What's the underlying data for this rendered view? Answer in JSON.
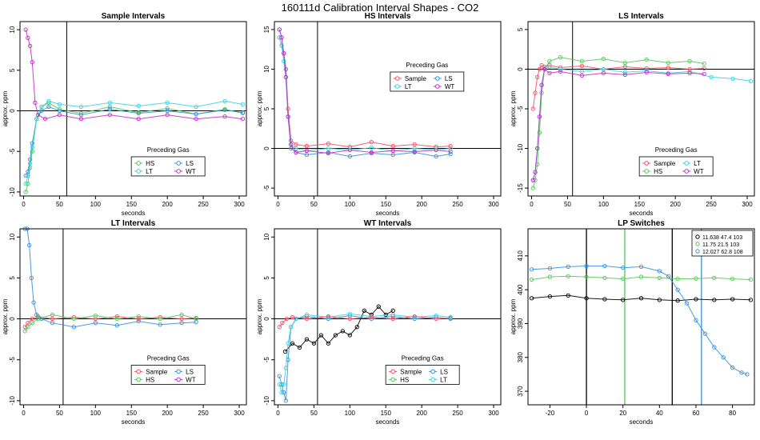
{
  "figure_title": "160111d   Calibration Interval Shapes - CO2",
  "colors": {
    "Sample": "#e8536a",
    "HS": "#59c65a",
    "LS": "#3a8fdc",
    "LT": "#3fd1dc",
    "WT": "#c030c8",
    "black": "#000000"
  },
  "chart_data": [
    {
      "type": "scatter",
      "title": "Sample Intervals",
      "xlabel": "seconds",
      "ylabel": "approx. ppm",
      "xlim": [
        -5,
        310
      ],
      "ylim": [
        -10.5,
        11
      ],
      "xticks": [
        0,
        50,
        100,
        150,
        200,
        250,
        300
      ],
      "yticks": [
        -10,
        -5,
        0,
        5,
        10
      ],
      "hline": 0,
      "vline": 60,
      "legend_title": "Preceding Gas",
      "legend": [
        "HS",
        "LS",
        "LT",
        "WT"
      ],
      "series": [
        {
          "name": "HS",
          "x": [
            3,
            6,
            9,
            12,
            18,
            25,
            35,
            50,
            80,
            120,
            160,
            200,
            240,
            280,
            305
          ],
          "y": [
            -10,
            -9,
            -7,
            -5,
            -1,
            0.5,
            1,
            0.2,
            -0.3,
            0.5,
            -0.2,
            0.3,
            -0.4,
            0.2,
            -0.3
          ]
        },
        {
          "name": "LS",
          "x": [
            3,
            6,
            9,
            12,
            18,
            25,
            35,
            50,
            80,
            120,
            160,
            200,
            240,
            280,
            305
          ],
          "y": [
            -8,
            -7.5,
            -6,
            -4,
            -1,
            0,
            0.5,
            0,
            -0.5,
            0.2,
            -0.3,
            0,
            -0.4,
            0.1,
            -0.2
          ]
        },
        {
          "name": "LT",
          "x": [
            3,
            6,
            9,
            12,
            18,
            25,
            35,
            50,
            80,
            120,
            160,
            200,
            240,
            280,
            305
          ],
          "y": [
            -9,
            -8,
            -6.5,
            -4.5,
            -1,
            0.5,
            1.2,
            0.8,
            0.5,
            1,
            0.6,
            1,
            0.5,
            1.2,
            0.8
          ]
        },
        {
          "name": "WT",
          "x": [
            3,
            6,
            9,
            12,
            16,
            20,
            30,
            50,
            80,
            120,
            160,
            200,
            240,
            280,
            305
          ],
          "y": [
            10,
            9,
            8,
            6,
            1,
            -0.5,
            -1,
            -0.5,
            -1,
            -0.5,
            -1,
            -0.5,
            -1,
            -0.7,
            -1
          ]
        }
      ]
    },
    {
      "type": "scatter",
      "title": "HS Intervals",
      "xlabel": "seconds",
      "ylabel": "approx. ppm",
      "xlim": [
        -5,
        310
      ],
      "ylim": [
        -6,
        16
      ],
      "xticks": [
        0,
        50,
        100,
        150,
        200,
        250,
        300
      ],
      "yticks": [
        -5,
        0,
        5,
        10,
        15
      ],
      "hline": 0,
      "vline": 55,
      "legend_title": "Preceding Gas",
      "legend": [
        "Sample",
        "LS",
        "LT",
        "WT"
      ],
      "series": [
        {
          "name": "Sample",
          "x": [
            2,
            5,
            8,
            11,
            14,
            18,
            25,
            40,
            70,
            100,
            130,
            160,
            190,
            220,
            240
          ],
          "y": [
            14,
            13,
            12,
            10,
            5,
            1,
            0.5,
            0.3,
            0.6,
            0.2,
            0.8,
            0.3,
            0.5,
            0.2,
            0.3
          ]
        },
        {
          "name": "LS",
          "x": [
            2,
            5,
            8,
            11,
            14,
            18,
            25,
            40,
            70,
            100,
            130,
            160,
            190,
            220,
            240
          ],
          "y": [
            15,
            14,
            12,
            10,
            4,
            0,
            -0.5,
            -0.8,
            -0.5,
            -1,
            -0.6,
            -0.8,
            -0.5,
            -1,
            -0.7
          ]
        },
        {
          "name": "LT",
          "x": [
            2,
            5,
            8,
            11,
            14,
            18,
            25,
            40,
            70,
            100,
            130,
            160,
            190,
            220,
            240
          ],
          "y": [
            14,
            13,
            11,
            9,
            4,
            0.5,
            0,
            -0.3,
            0,
            -0.2,
            0.1,
            -0.3,
            0,
            -0.2,
            0
          ]
        },
        {
          "name": "WT",
          "x": [
            2,
            5,
            8,
            11,
            14,
            18,
            25,
            40,
            70,
            100,
            130,
            160,
            190,
            220,
            240
          ],
          "y": [
            15,
            14,
            12,
            9,
            4,
            0.5,
            -0.5,
            -0.3,
            -0.6,
            -0.2,
            -0.5,
            -0.3,
            -0.4,
            -0.2,
            -0.4
          ]
        }
      ]
    },
    {
      "type": "scatter",
      "title": "LS Intervals",
      "xlabel": "seconds",
      "ylabel": "approx. ppm",
      "xlim": [
        -5,
        310
      ],
      "ylim": [
        -16,
        6
      ],
      "xticks": [
        0,
        50,
        100,
        150,
        200,
        250,
        300
      ],
      "yticks": [
        -15,
        -10,
        -5,
        0,
        5
      ],
      "hline": 0,
      "vline": 57,
      "legend_title": "Preceding Gas",
      "legend": [
        "Sample",
        "LT",
        "HS",
        "WT"
      ],
      "series": [
        {
          "name": "Sample",
          "x": [
            2,
            5,
            8,
            11,
            14,
            18,
            25,
            40,
            70,
            100,
            130,
            160,
            190,
            220,
            240
          ],
          "y": [
            -5,
            -3,
            -1,
            0,
            0.5,
            0.3,
            0.5,
            0.2,
            0.4,
            0,
            0.3,
            0.1,
            0.2,
            0,
            0.1
          ]
        },
        {
          "name": "HS",
          "x": [
            2,
            5,
            8,
            11,
            14,
            18,
            25,
            40,
            70,
            100,
            130,
            160,
            190,
            220,
            240
          ],
          "y": [
            -15,
            -14,
            -12,
            -8,
            -3,
            0,
            1,
            1.5,
            1,
            1.3,
            0.8,
            1.2,
            0.8,
            1,
            0.7
          ]
        },
        {
          "name": "LT",
          "x": [
            2,
            5,
            8,
            11,
            14,
            18,
            25,
            40,
            70,
            100,
            130,
            160,
            190,
            220,
            250,
            280,
            305
          ],
          "y": [
            -14,
            -13,
            -10,
            -6,
            -2,
            0,
            0.3,
            0,
            -0.3,
            0,
            -0.4,
            -0.2,
            -0.5,
            -0.3,
            -1,
            -1.2,
            -1.5
          ]
        },
        {
          "name": "WT",
          "x": [
            2,
            5,
            8,
            11,
            14,
            18,
            25,
            40,
            70,
            100,
            130,
            160,
            190,
            220,
            240
          ],
          "y": [
            -14,
            -13,
            -10,
            -6,
            -2,
            0,
            -0.5,
            -0.3,
            -0.8,
            -0.5,
            -0.7,
            -0.4,
            -0.6,
            -0.5,
            -0.6
          ]
        }
      ]
    },
    {
      "type": "scatter",
      "title": "LT Intervals",
      "xlabel": "seconds",
      "ylabel": "approx. ppm",
      "xlim": [
        -5,
        310
      ],
      "ylim": [
        -10.5,
        11
      ],
      "xticks": [
        0,
        50,
        100,
        150,
        200,
        250,
        300
      ],
      "yticks": [
        -10,
        -5,
        0,
        5,
        10
      ],
      "hline": 0,
      "vline": 55,
      "legend_title": "Preceding Gas",
      "legend": [
        "Sample",
        "LS",
        "HS",
        "WT"
      ],
      "series": [
        {
          "name": "Sample",
          "x": [
            2,
            6,
            12,
            20,
            40,
            70,
            100,
            130,
            160,
            190,
            220,
            240
          ],
          "y": [
            -1,
            -0.5,
            0,
            0.3,
            0,
            0.2,
            0,
            0.3,
            0,
            0.2,
            0,
            0.1
          ]
        },
        {
          "name": "LS",
          "x": [
            2,
            5,
            8,
            11,
            14,
            18,
            25,
            40,
            70,
            100,
            130,
            160,
            190,
            220,
            240
          ],
          "y": [
            11,
            11,
            9,
            5,
            2,
            0.5,
            0,
            -0.5,
            -1,
            -0.5,
            -0.8,
            -0.3,
            -0.7,
            -0.5,
            -0.4
          ]
        },
        {
          "name": "HS",
          "x": [
            2,
            6,
            12,
            20,
            40,
            70,
            100,
            130,
            160,
            190,
            220,
            240
          ],
          "y": [
            -1.5,
            -1,
            -0.5,
            0,
            0.5,
            0,
            0.4,
            0,
            0.3,
            0,
            0.5,
            0
          ]
        },
        {
          "name": "WT",
          "x": [],
          "y": []
        }
      ]
    },
    {
      "type": "scatter",
      "title": "WT Intervals",
      "xlabel": "seconds",
      "ylabel": "approx. ppm",
      "xlim": [
        -5,
        310
      ],
      "ylim": [
        -10.5,
        11
      ],
      "xticks": [
        0,
        50,
        100,
        150,
        200,
        250,
        300
      ],
      "yticks": [
        -10,
        -5,
        0,
        5,
        10
      ],
      "hline": 0,
      "vline": 55,
      "legend_title": "Preceding Gas",
      "legend": [
        "Sample",
        "LS",
        "HS",
        "LT"
      ],
      "series": [
        {
          "name": "black",
          "x": [
            10,
            20,
            30,
            40,
            50,
            60,
            70,
            80,
            90,
            100,
            110,
            120,
            130,
            140,
            150,
            160
          ],
          "y": [
            -4,
            -3,
            -3.5,
            -2.5,
            -3,
            -2,
            -3,
            -2,
            -1.5,
            -2,
            -1,
            1,
            0.5,
            1.5,
            0.5,
            1
          ]
        },
        {
          "name": "LS",
          "x": [
            2,
            5,
            8,
            11,
            14,
            18,
            25,
            40,
            70,
            100,
            130,
            160,
            190,
            220,
            240
          ],
          "y": [
            -7,
            -8,
            -9,
            -10,
            -5,
            -1,
            0,
            0.3,
            0,
            0.4,
            0,
            0.3,
            0,
            0.2,
            0
          ]
        },
        {
          "name": "LT",
          "x": [
            2,
            5,
            8,
            11,
            14,
            18,
            25,
            40,
            70,
            100,
            130,
            160,
            190,
            220,
            240
          ],
          "y": [
            -8,
            -9,
            -8,
            -6,
            -3,
            -1,
            0,
            0.5,
            0.2,
            0.6,
            0.3,
            0.5,
            0.2,
            0.4,
            0.2
          ]
        },
        {
          "name": "Sample",
          "x": [
            2,
            6,
            12,
            20,
            40,
            70,
            100,
            130,
            160,
            190,
            220,
            240
          ],
          "y": [
            -1,
            -0.5,
            0,
            0.2,
            0,
            0.3,
            0,
            0.2,
            0,
            0.3,
            0,
            0.1
          ]
        }
      ]
    },
    {
      "type": "scatter",
      "title": "LP Switches",
      "xlabel": "seconds",
      "ylabel": "approx. ppm",
      "xlim": [
        -32,
        92
      ],
      "ylim": [
        366,
        418
      ],
      "xticks": [
        -20,
        0,
        20,
        40,
        60,
        80
      ],
      "yticks": [
        370,
        380,
        390,
        400,
        410
      ],
      "vlines": [
        {
          "x": 0,
          "color": "black"
        },
        {
          "x": 21,
          "color": "HS"
        },
        {
          "x": 47,
          "color": "black"
        },
        {
          "x": 63,
          "color": "LS"
        }
      ],
      "legend": [
        "11.638 47.4 103",
        "11.75 21.5 103",
        "12.027 62.8 108"
      ],
      "legend_colors": [
        "black",
        "HS",
        "LS"
      ],
      "series": [
        {
          "name": "black",
          "x": [
            -30,
            -20,
            -10,
            0,
            10,
            20,
            30,
            40,
            50,
            60,
            70,
            80,
            90
          ],
          "y": [
            397.5,
            398,
            398.3,
            397.5,
            397.2,
            397,
            397.5,
            397,
            396.8,
            397.2,
            397,
            397.2,
            397
          ]
        },
        {
          "name": "HS",
          "x": [
            -30,
            -20,
            -10,
            0,
            10,
            20,
            30,
            40,
            50,
            60,
            70,
            80,
            90
          ],
          "y": [
            403,
            403.8,
            404,
            403.8,
            403.5,
            403.2,
            403.8,
            403.5,
            403.2,
            403.3,
            403.5,
            403.2,
            403
          ]
        },
        {
          "name": "LS",
          "x": [
            -30,
            -20,
            -10,
            0,
            10,
            20,
            30,
            40,
            45,
            50,
            55,
            60,
            65,
            70,
            75,
            80,
            85,
            88
          ],
          "y": [
            406,
            406.3,
            406.8,
            407,
            407,
            406.5,
            406.8,
            405.5,
            404,
            400,
            396,
            391,
            387,
            383,
            380,
            377,
            375.5,
            375
          ]
        }
      ]
    }
  ]
}
